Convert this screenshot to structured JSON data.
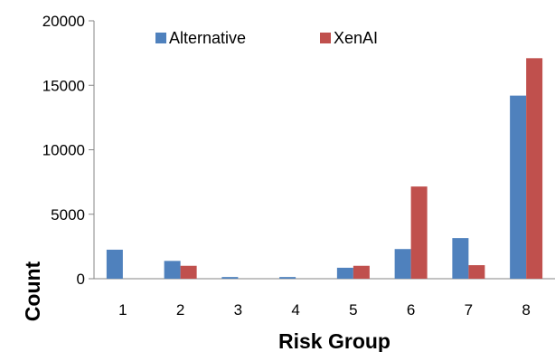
{
  "chart_data": {
    "type": "bar",
    "categories": [
      "1",
      "2",
      "3",
      "4",
      "5",
      "6",
      "7",
      "8"
    ],
    "series": [
      {
        "name": "Alternative",
        "color": "#4F81BD",
        "values": [
          2250,
          1380,
          130,
          130,
          850,
          2300,
          3150,
          14200
        ]
      },
      {
        "name": "XenAI",
        "color": "#C0504D",
        "values": [
          0,
          1000,
          0,
          0,
          1000,
          7150,
          1050,
          17100
        ]
      }
    ],
    "title": "",
    "xlabel": "Risk Group",
    "ylabel": "Count",
    "ylim": [
      0,
      20000
    ],
    "yticks": [
      "0",
      "5000",
      "10000",
      "15000",
      "20000"
    ],
    "legend": "top-left inside",
    "grid": false
  }
}
